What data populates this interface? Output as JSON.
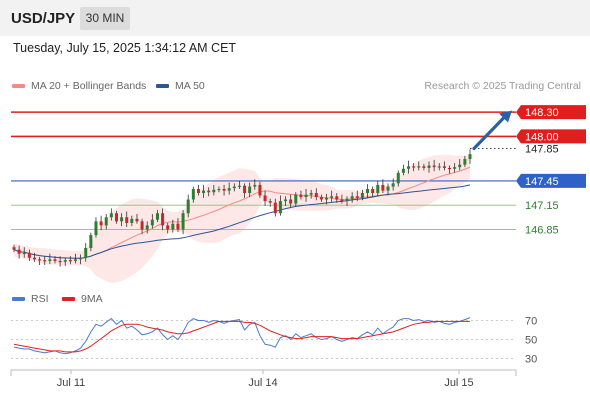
{
  "header": {
    "symbol": "USD/JPY",
    "timeframe": "30 MIN"
  },
  "datetime": "Tuesday, July 15, 2025 1:34:12 AM CET",
  "legend": {
    "items": [
      {
        "label": "MA 20 + Bollinger Bands",
        "color": "#f28b82"
      },
      {
        "label": "MA 50",
        "color": "#2e5596"
      }
    ],
    "credit": "Research © 2025 Trading Central"
  },
  "rsi_legend": {
    "items": [
      {
        "label": "RSI",
        "color": "#4a7bd0"
      },
      {
        "label": "9MA",
        "color": "#e02020"
      }
    ]
  },
  "colors": {
    "resistance": "#e01e1e",
    "pivot": "#2f62c9",
    "support": "#8cc07c",
    "support_text": "#2e7d32",
    "bollinger_fill": "#fde3e3",
    "arrow": "#2b5fa8",
    "candle_up": "#2e7d32",
    "candle_down": "#c62828"
  },
  "chart_data": [
    {
      "type": "candlestick",
      "title": "USD/JPY",
      "ylim": [
        146.2,
        148.45
      ],
      "x_ticks": [
        "Jul 11",
        "Jul 14",
        "Jul 15"
      ],
      "levels": [
        {
          "value": 148.3,
          "label": "148.30",
          "kind": "resistance"
        },
        {
          "value": 148.0,
          "label": "148.00",
          "kind": "resistance"
        },
        {
          "value": 147.45,
          "label": "147.45",
          "kind": "pivot"
        },
        {
          "value": 147.15,
          "label": "147.15",
          "kind": "support"
        },
        {
          "value": 146.85,
          "label": "146.85",
          "kind": "support"
        }
      ],
      "last_price": {
        "value": 147.85,
        "label": "147.85"
      },
      "path": [
        146.6,
        146.55,
        146.56,
        146.5,
        146.48,
        146.47,
        146.46,
        146.48,
        146.46,
        146.45,
        146.47,
        146.46,
        146.48,
        146.5,
        146.62,
        146.78,
        146.95,
        146.9,
        147.0,
        147.05,
        146.95,
        147.0,
        146.93,
        146.98,
        146.95,
        146.85,
        146.9,
        146.97,
        147.05,
        146.9,
        146.85,
        146.92,
        146.85,
        147.05,
        147.22,
        147.35,
        147.3,
        147.33,
        147.31,
        147.34,
        147.35,
        147.33,
        147.36,
        147.38,
        147.39,
        147.3,
        147.38,
        147.4,
        147.27,
        147.2,
        147.18,
        147.05,
        147.2,
        147.22,
        147.17,
        147.28,
        147.25,
        147.28,
        147.3,
        147.25,
        147.22,
        147.24,
        147.26,
        147.22,
        147.2,
        147.23,
        147.26,
        147.24,
        147.3,
        147.35,
        147.3,
        147.4,
        147.33,
        147.38,
        147.42,
        147.55,
        147.6,
        147.63,
        147.62,
        147.63,
        147.61,
        147.64,
        147.62,
        147.63,
        147.61,
        147.6,
        147.62,
        147.65,
        147.72,
        147.78
      ]
    },
    {
      "type": "line",
      "title": "RSI",
      "ylim": [
        20,
        80
      ],
      "y_ticks": [
        "70",
        "50",
        "30"
      ],
      "series": [
        {
          "name": "RSI",
          "values": [
            42,
            41,
            40,
            40,
            38,
            37,
            36,
            37,
            38,
            36,
            35,
            36,
            38,
            41,
            48,
            58,
            66,
            64,
            68,
            72,
            66,
            70,
            62,
            64,
            60,
            55,
            56,
            58,
            62,
            55,
            50,
            54,
            50,
            58,
            68,
            72,
            70,
            70,
            68,
            70,
            69,
            67,
            69,
            70,
            71,
            60,
            66,
            68,
            54,
            45,
            44,
            42,
            52,
            54,
            50,
            56,
            52,
            54,
            56,
            52,
            50,
            51,
            53,
            50,
            48,
            50,
            52,
            51,
            55,
            58,
            55,
            62,
            56,
            60,
            63,
            70,
            72,
            72,
            70,
            71,
            69,
            70,
            68,
            69,
            67,
            66,
            68,
            69,
            71,
            73
          ]
        },
        {
          "name": "9MA",
          "values": [
            45,
            44,
            43,
            42,
            41,
            40,
            39,
            38,
            38,
            38,
            37,
            37,
            37,
            38,
            40,
            43,
            47,
            51,
            55,
            59,
            62,
            65,
            66,
            66,
            66,
            65,
            63,
            62,
            61,
            60,
            58,
            57,
            56,
            56,
            57,
            59,
            61,
            63,
            65,
            67,
            69,
            69,
            69,
            69,
            69,
            68,
            68,
            67,
            65,
            62,
            59,
            57,
            55,
            53,
            52,
            51,
            51,
            52,
            53,
            53,
            53,
            53,
            53,
            52,
            51,
            51,
            51,
            51,
            52,
            53,
            54,
            55,
            56,
            57,
            58,
            60,
            62,
            64,
            66,
            67,
            68,
            68,
            69,
            69,
            69,
            69,
            69,
            69,
            69,
            69
          ]
        }
      ]
    }
  ]
}
